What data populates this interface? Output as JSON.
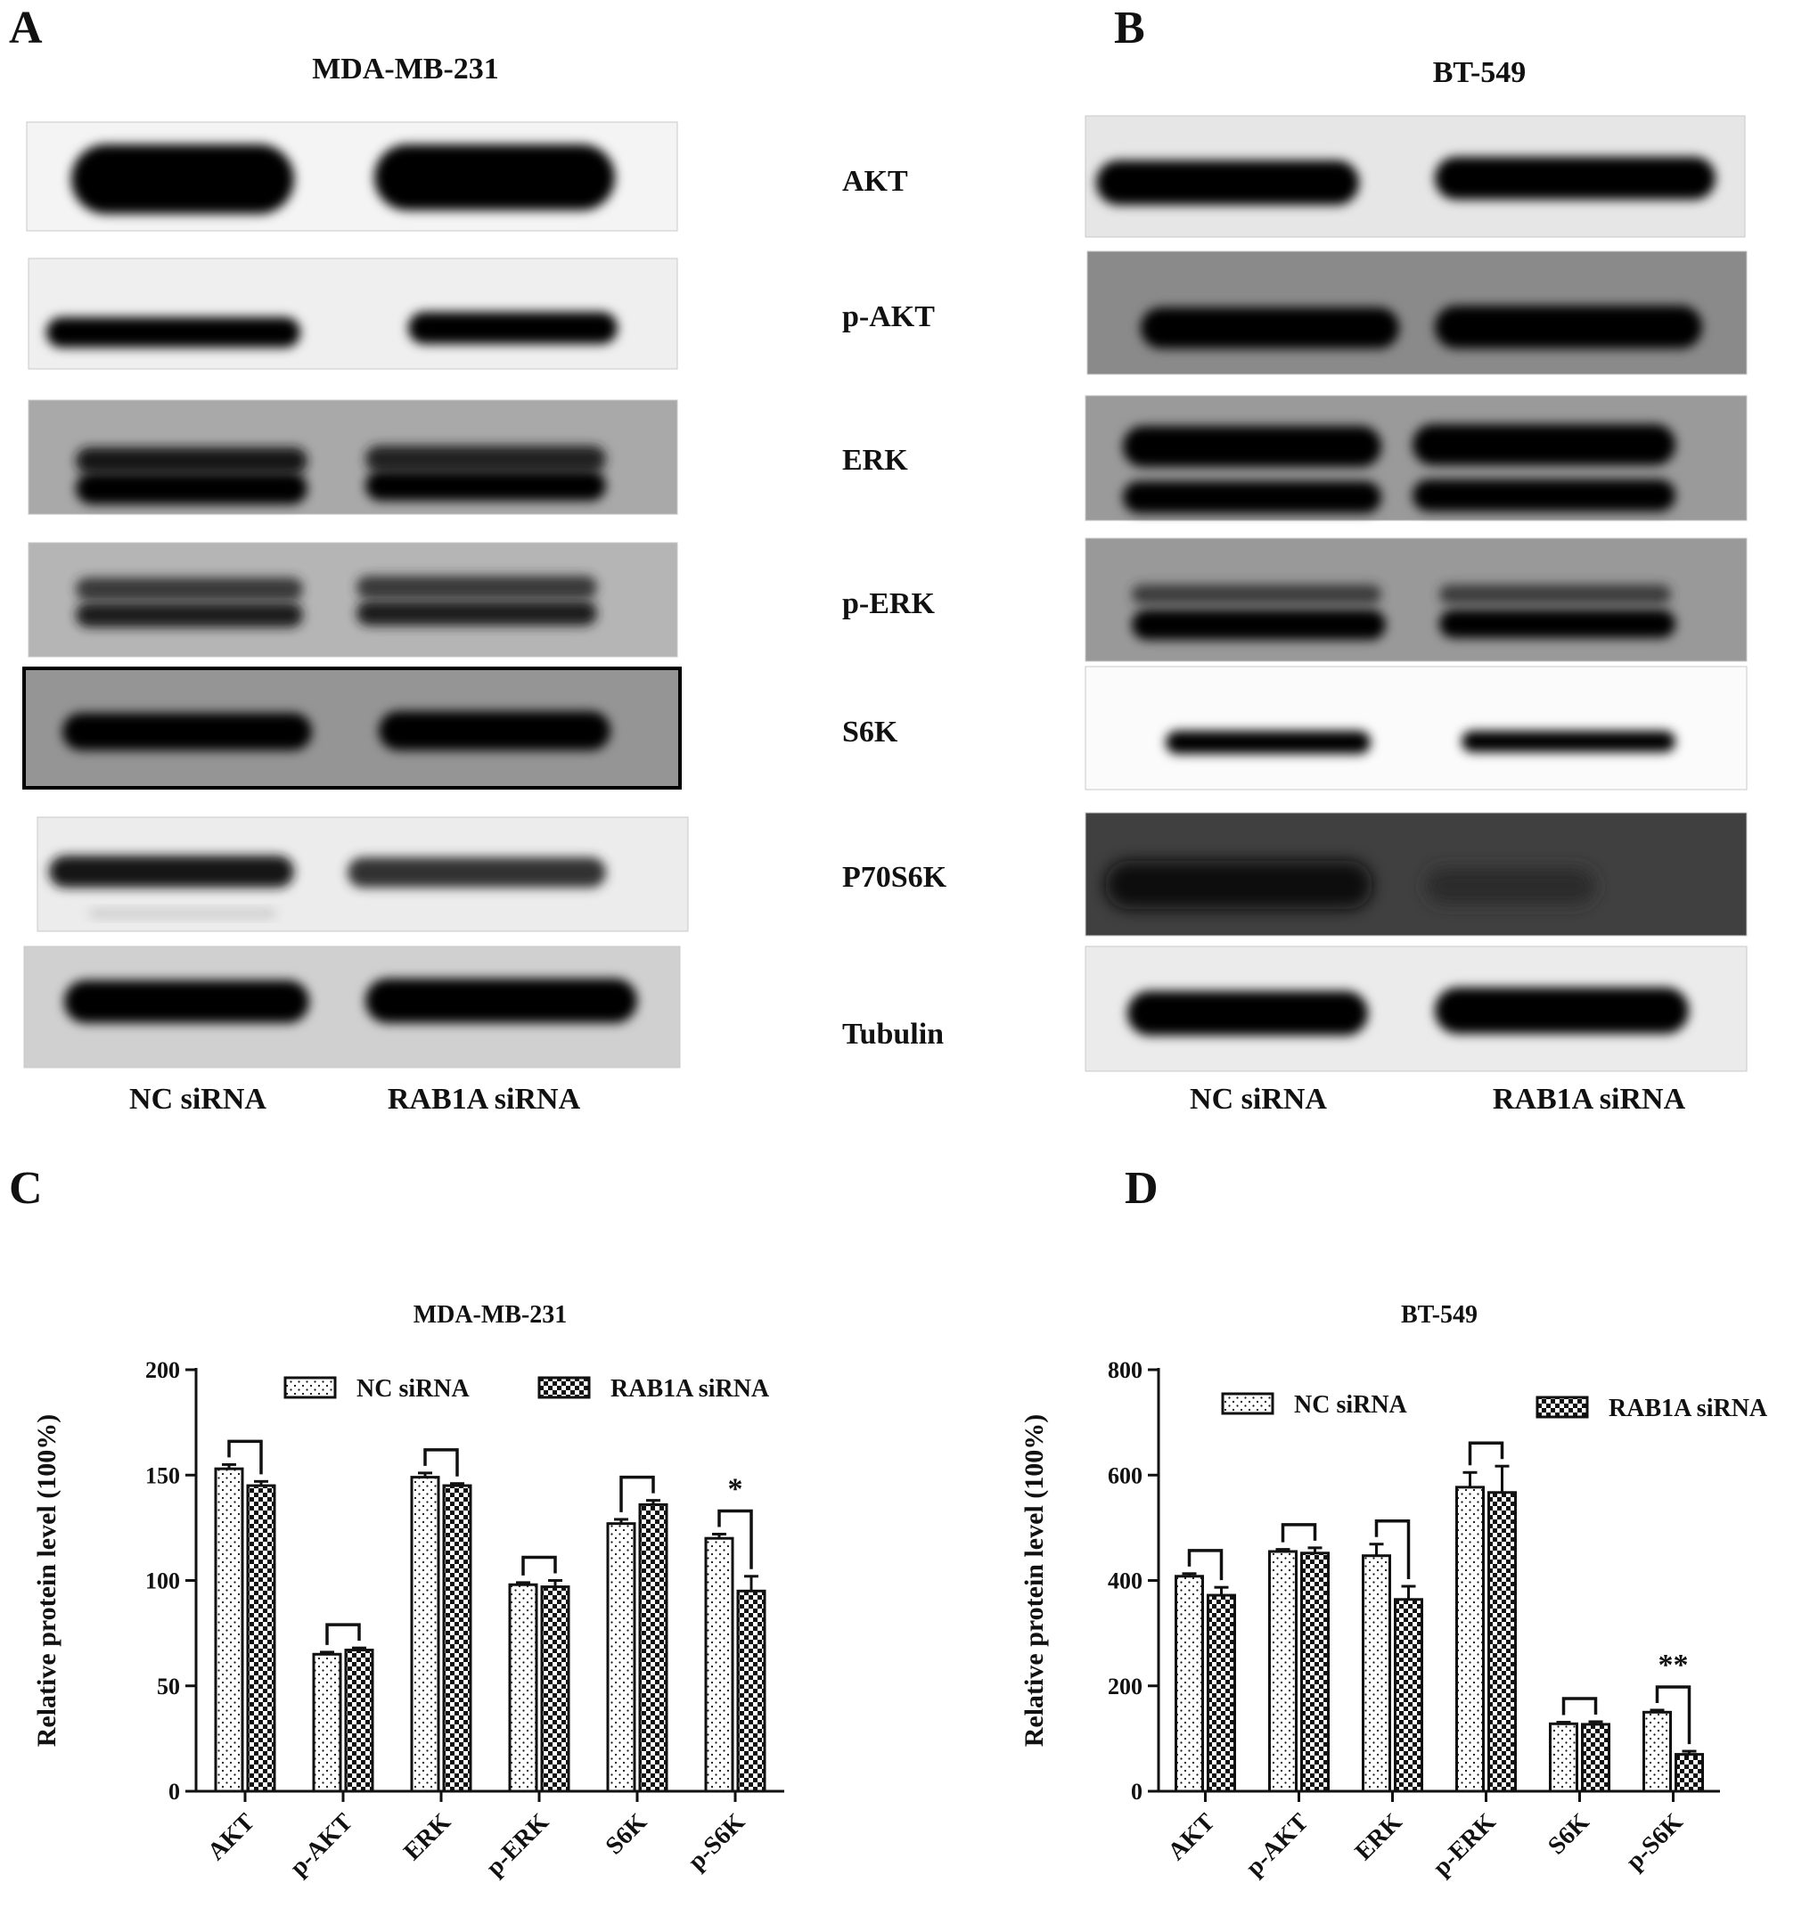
{
  "panels": [
    {
      "id": "A",
      "letter": "A",
      "cell_line": "MDA-MB-231"
    },
    {
      "id": "B",
      "letter": "B",
      "cell_line": "BT-549"
    },
    {
      "id": "C",
      "letter": "C"
    },
    {
      "id": "D",
      "letter": "D"
    }
  ],
  "blot": {
    "proteins": [
      "AKT",
      "p-AKT",
      "ERK",
      "p-ERK",
      "S6K",
      "P70S6K",
      "Tubulin"
    ],
    "lanes": [
      "NC siRNA",
      "RAB1A siRNA"
    ]
  },
  "chart_data": [
    {
      "type": "bar",
      "title": "MDA-MB-231",
      "ylabel": "Relative protein level (100%)",
      "ylim": [
        0,
        200
      ],
      "yticks": [
        0,
        50,
        100,
        150,
        200
      ],
      "categories": [
        "AKT",
        "p-AKT",
        "ERK",
        "p-ERK",
        "S6K",
        "p-S6K"
      ],
      "series": [
        {
          "name": "NC siRNA",
          "values": [
            153,
            65,
            149,
            98,
            127,
            120
          ],
          "errors": [
            2,
            1,
            2,
            1,
            2,
            2
          ],
          "pattern": "dots"
        },
        {
          "name": "RAB1A siRNA",
          "values": [
            145,
            67,
            145,
            97,
            136,
            95
          ],
          "errors": [
            2,
            1,
            1,
            3,
            2,
            7
          ],
          "pattern": "checker"
        }
      ],
      "significance": [
        "",
        "",
        "",
        "",
        "",
        "*"
      ],
      "legend_position": "top"
    },
    {
      "type": "bar",
      "title": "BT-549",
      "ylabel": "Relative protein level (100%)",
      "ylim": [
        0,
        800
      ],
      "yticks": [
        0,
        200,
        400,
        600,
        800
      ],
      "categories": [
        "AKT",
        "p-AKT",
        "ERK",
        "p-ERK",
        "S6K",
        "p-S6K"
      ],
      "series": [
        {
          "name": "NC siRNA",
          "values": [
            408,
            455,
            447,
            577,
            128,
            150
          ],
          "errors": [
            5,
            4,
            22,
            28,
            3,
            4
          ],
          "pattern": "dots"
        },
        {
          "name": "RAB1A siRNA",
          "values": [
            372,
            452,
            364,
            567,
            127,
            70
          ],
          "errors": [
            15,
            10,
            25,
            50,
            5,
            6
          ],
          "pattern": "checker"
        }
      ],
      "significance": [
        "",
        "",
        "",
        "",
        "",
        "**"
      ],
      "legend_position": "top"
    }
  ]
}
